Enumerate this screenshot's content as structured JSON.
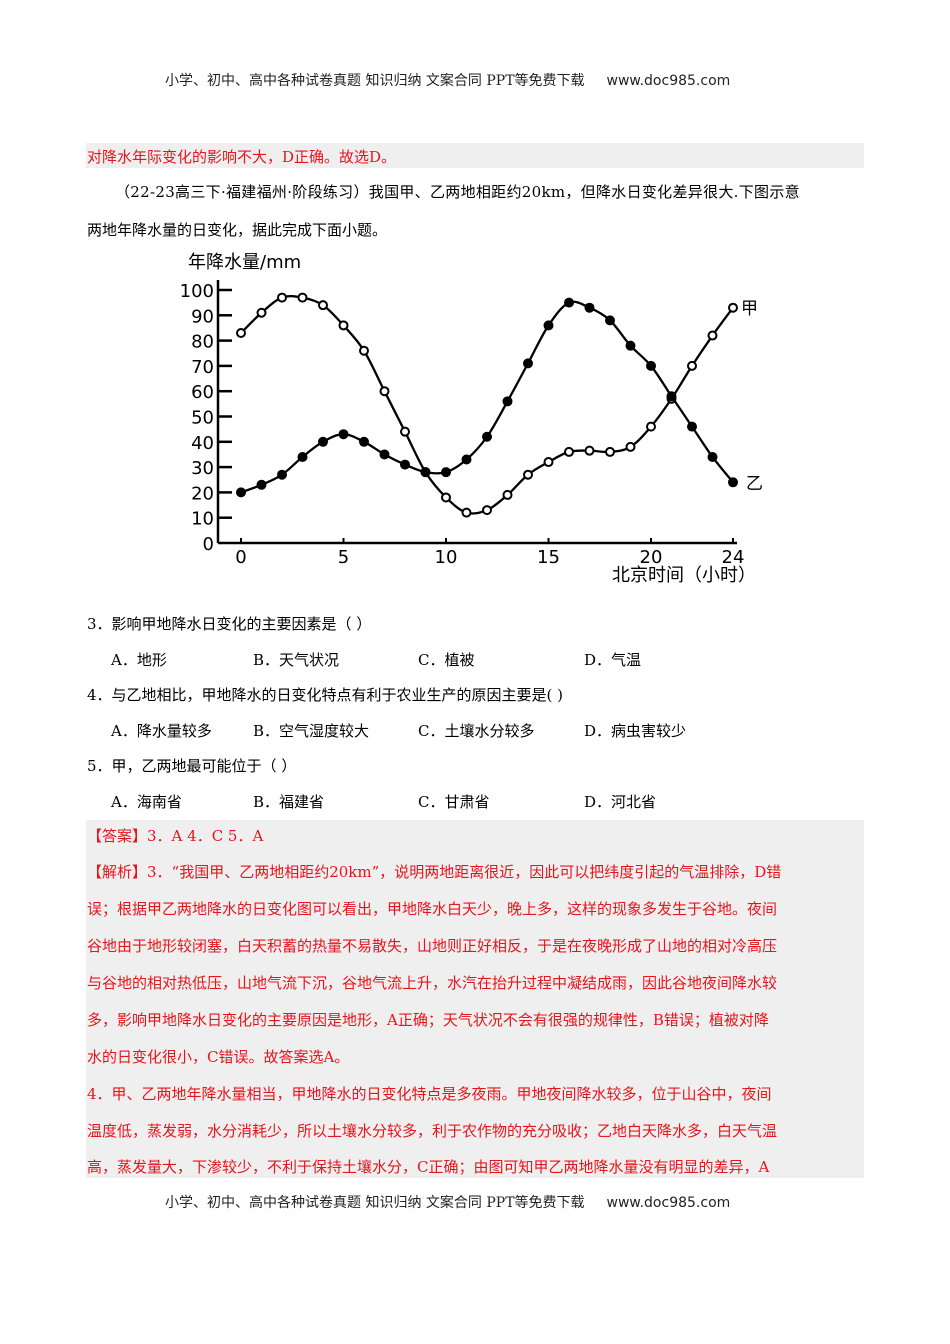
{
  "header": {
    "text": "小学、初中、高中各种试卷真题  知识归纳  文案合同  PPT等免费下载",
    "url": "www.doc985.com"
  },
  "footer": {
    "text": "小学、初中、高中各种试卷真题  知识归纳  文案合同  PPT等免费下载",
    "url": "www.doc985.com"
  },
  "prev_answer_tail": "对降水年际变化的影响不大，D正确。故选D。",
  "intro": {
    "line1": "（22-23高三下·福建福州·阶段练习）我国甲、乙两地相距约20km，但降水日变化差异很大.下图示意",
    "line2": "两地年降水量的日变化，据此完成下面小题。"
  },
  "chart_data": {
    "type": "line",
    "ylabel": "年降水量/mm",
    "xlabel": "北京时间（小时）",
    "xlim": [
      0,
      24
    ],
    "ylim": [
      0,
      100
    ],
    "x_ticks": [
      "0",
      "5",
      "10",
      "15",
      "20",
      "24"
    ],
    "y_ticks": [
      "0",
      "10",
      "20",
      "30",
      "40",
      "50",
      "60",
      "70",
      "80",
      "90",
      "100"
    ],
    "x": [
      0,
      1,
      2,
      3,
      4,
      5,
      6,
      7,
      8,
      9,
      10,
      11,
      12,
      13,
      14,
      15,
      16,
      17,
      18,
      19,
      20,
      21,
      22,
      23,
      24
    ],
    "series": [
      {
        "name": "甲",
        "marker": "open-circle",
        "values": [
          83,
          91,
          97,
          97,
          94,
          86,
          76,
          60,
          44,
          28,
          18,
          12,
          13,
          19,
          27,
          32,
          36,
          36.5,
          36,
          38,
          46,
          57,
          70,
          82,
          93
        ]
      },
      {
        "name": "乙",
        "marker": "filled-circle",
        "values": [
          20,
          23,
          27,
          34,
          40,
          43,
          40,
          35,
          31,
          28,
          28,
          33,
          42,
          56,
          71,
          86,
          95,
          93,
          88,
          78,
          70,
          58,
          46,
          34,
          24
        ]
      }
    ],
    "grid": false
  },
  "questions": [
    {
      "stem": "3．影响甲地降水日变化的主要因素是（    ）",
      "options": [
        "A．地形",
        "B．天气状况",
        "C．植被",
        "D．气温"
      ]
    },
    {
      "stem": "4．与乙地相比，甲地降水的日变化特点有利于农业生产的原因主要是(    )",
      "options": [
        "A．降水量较多",
        "B．空气湿度较大",
        "C．土壤水分较多",
        "D．病虫害较少"
      ]
    },
    {
      "stem": "5．甲，乙两地最可能位于（    ）",
      "options": [
        "A．海南省",
        "B．福建省",
        "C．甘肃省",
        "D．河北省"
      ]
    }
  ],
  "answer": {
    "line": "【答案】3．A    4．C    5．A",
    "analysis_lines": [
      "【解析】3．“我国甲、乙两地相距约20km”，说明两地距离很近，因此可以把纬度引起的气温排除，D错",
      "误；根据甲乙两地降水的日变化图可以看出，甲地降水白天少，晚上多，这样的现象多发生于谷地。夜间",
      "谷地由于地形较闭塞，白天积蓄的热量不易散失，山地则正好相反，于是在夜晚形成了山地的相对冷高压",
      "与谷地的相对热低压，山地气流下沉，谷地气流上升，水汽在抬升过程中凝结成雨，因此谷地夜间降水较",
      "多，影响甲地降水日变化的主要原因是地形，A正确；天气状况不会有很强的规律性，B错误；植被对降",
      "水的日变化很小，C错误。故答案选A。",
      "4．甲、乙两地年降水量相当，甲地降水的日变化特点是多夜雨。甲地夜间降水较多，位于山谷中，夜间",
      "温度低，蒸发弱，水分消耗少，所以土壤水分较多，利于农作物的充分吸收；乙地白天降水多，白天气温",
      "高，蒸发量大，下渗较少，不利于保持土壤水分，C正确；由图可知甲乙两地降水量没有明显的差异，A"
    ]
  },
  "colors": {
    "answer_text": "#e8141c",
    "answer_bg": "#efefef"
  }
}
